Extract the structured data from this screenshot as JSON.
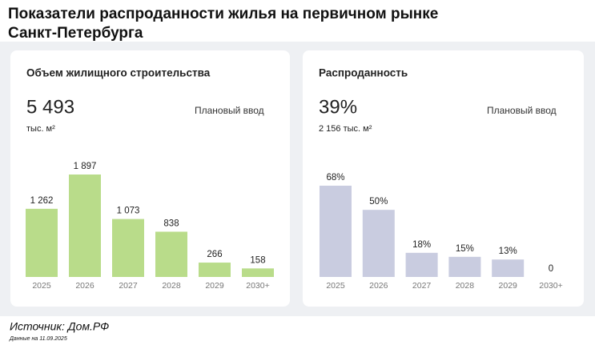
{
  "title": "Показатели распроданности жилья на первичном рынке Санкт-Петербурга",
  "chart_data": [
    {
      "type": "bar",
      "title": "Объем жилищного строительства",
      "headline": "5 493",
      "headline_unit": "тыс. м²",
      "note": "Плановый ввод",
      "categories": [
        "2025",
        "2026",
        "2027",
        "2028",
        "2029",
        "2030+"
      ],
      "values": [
        1262,
        1897,
        1073,
        838,
        266,
        158
      ],
      "value_labels": [
        "1 262",
        "1 897",
        "1 073",
        "838",
        "266",
        "158"
      ],
      "color": "#b9dc8a"
    },
    {
      "type": "bar",
      "title": "Распроданность",
      "headline": "39%",
      "headline_unit": "2 156 тыс. м²",
      "note": "Плановый ввод",
      "categories": [
        "2025",
        "2026",
        "2027",
        "2028",
        "2029",
        "2030+"
      ],
      "values": [
        68,
        50,
        18,
        15,
        13,
        0
      ],
      "value_labels": [
        "68%",
        "50%",
        "18%",
        "15%",
        "13%",
        "0"
      ],
      "color": "#c9cce0"
    }
  ],
  "source": "Источник: Дом.РФ",
  "date_note": "Данные на 11.09.2025"
}
